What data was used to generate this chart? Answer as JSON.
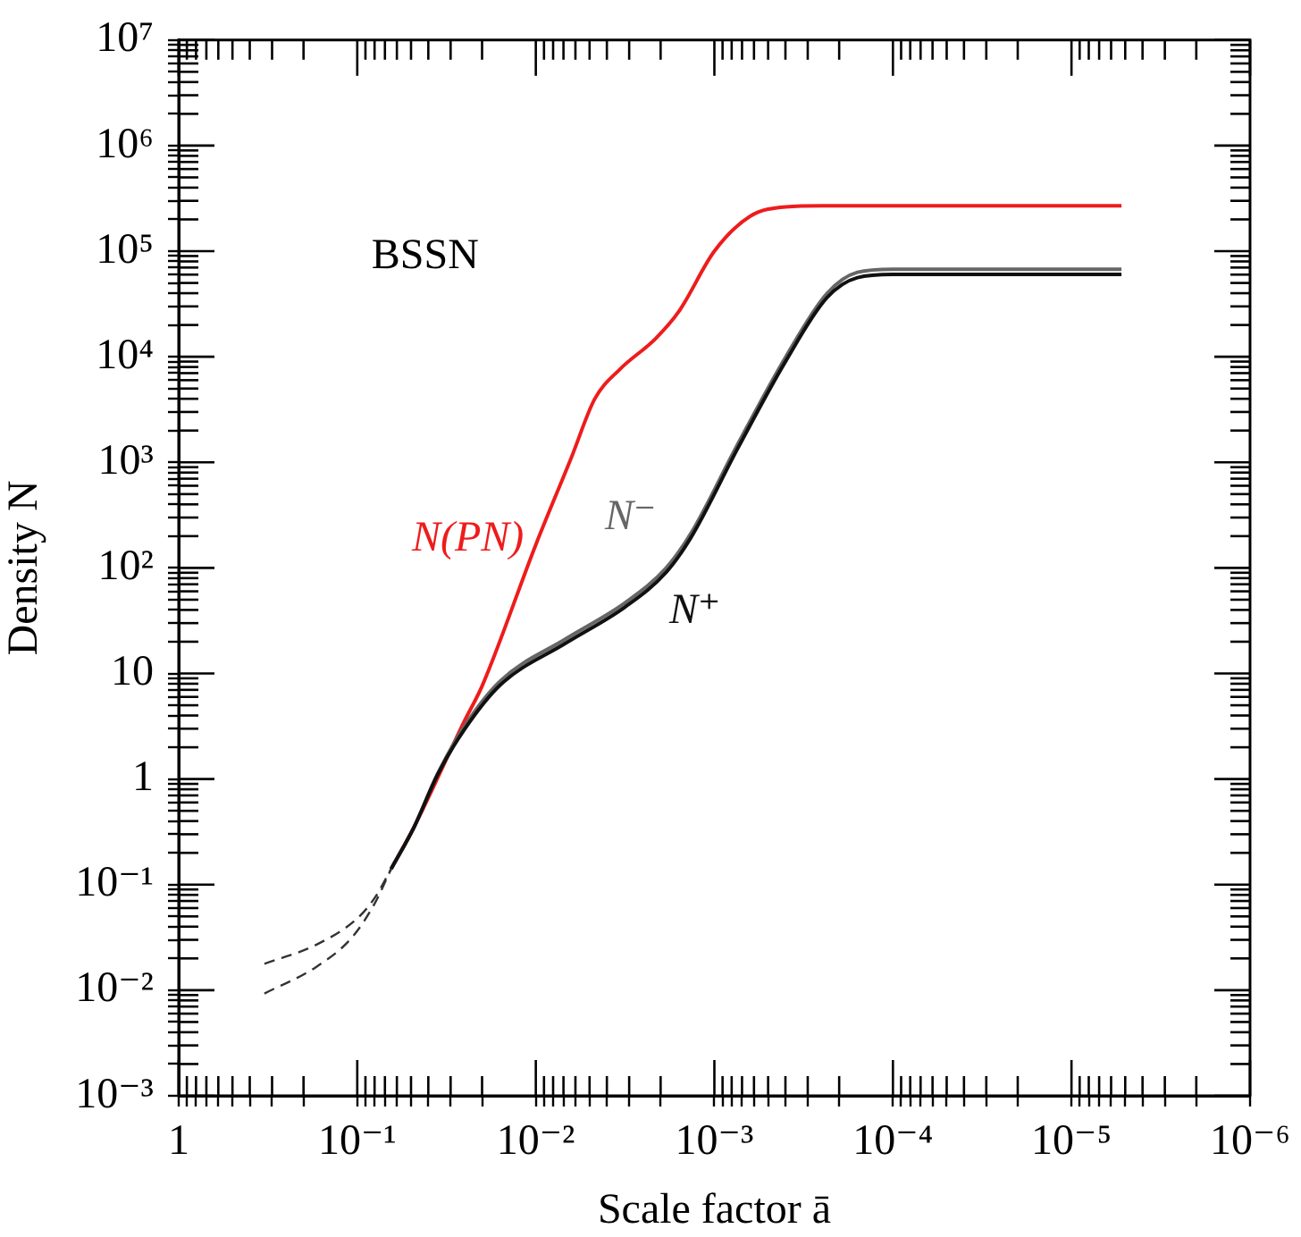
{
  "chart_data": {
    "type": "line",
    "xlabel": "Scale factor ā",
    "ylabel": "Density N",
    "annotations": [
      "BSSN"
    ],
    "log": "xy",
    "grid": false,
    "legend": false,
    "marker": "none",
    "xlim": [
      1,
      1e-06
    ],
    "ylim": [
      0.001,
      10000000.0
    ],
    "xticks": [
      {
        "value": 1,
        "label": "1"
      },
      {
        "value": 0.9,
        "label": null
      },
      {
        "value": 0.8,
        "label": null
      },
      {
        "value": 0.7,
        "label": null
      },
      {
        "value": 0.6,
        "label": null
      },
      {
        "value": 0.5,
        "label": null
      },
      {
        "value": 0.4,
        "label": null
      },
      {
        "value": 0.3,
        "label": null
      },
      {
        "value": 0.2,
        "label": null
      },
      {
        "value": 0.1,
        "label": "10⁻¹"
      },
      {
        "value": 0.09,
        "label": null
      },
      {
        "value": 0.08,
        "label": null
      },
      {
        "value": 0.07,
        "label": null
      },
      {
        "value": 0.06,
        "label": null
      },
      {
        "value": 0.05,
        "label": null
      },
      {
        "value": 0.04,
        "label": null
      },
      {
        "value": 0.03,
        "label": null
      },
      {
        "value": 0.02,
        "label": null
      },
      {
        "value": 0.01,
        "label": "10⁻²"
      },
      {
        "value": 0.009,
        "label": null
      },
      {
        "value": 0.008,
        "label": null
      },
      {
        "value": 0.007,
        "label": null
      },
      {
        "value": 0.006,
        "label": null
      },
      {
        "value": 0.005,
        "label": null
      },
      {
        "value": 0.004,
        "label": null
      },
      {
        "value": 0.003,
        "label": null
      },
      {
        "value": 0.002,
        "label": null
      },
      {
        "value": 0.001,
        "label": "10⁻³"
      },
      {
        "value": 0.0009,
        "label": null
      },
      {
        "value": 0.0008,
        "label": null
      },
      {
        "value": 0.0007,
        "label": null
      },
      {
        "value": 0.0006,
        "label": null
      },
      {
        "value": 0.0005,
        "label": null
      },
      {
        "value": 0.0004,
        "label": null
      },
      {
        "value": 0.0003,
        "label": null
      },
      {
        "value": 0.0002,
        "label": null
      },
      {
        "value": 0.0001,
        "label": "10⁻⁴"
      },
      {
        "value": 9e-05,
        "label": null
      },
      {
        "value": 8e-05,
        "label": null
      },
      {
        "value": 7e-05,
        "label": null
      },
      {
        "value": 6e-05,
        "label": null
      },
      {
        "value": 5e-05,
        "label": null
      },
      {
        "value": 4e-05,
        "label": null
      },
      {
        "value": 3e-05,
        "label": null
      },
      {
        "value": 2e-05,
        "label": null
      },
      {
        "value": 1e-05,
        "label": "10⁻⁵"
      },
      {
        "value": 9e-06,
        "label": null
      },
      {
        "value": 8e-06,
        "label": null
      },
      {
        "value": 7e-06,
        "label": null
      },
      {
        "value": 6e-06,
        "label": null
      },
      {
        "value": 5e-06,
        "label": null
      },
      {
        "value": 4e-06,
        "label": null
      },
      {
        "value": 3e-06,
        "label": null
      },
      {
        "value": 2e-06,
        "label": null
      },
      {
        "value": 1e-06,
        "label": "10⁻⁶"
      }
    ],
    "yticks": [
      {
        "value": 0.001,
        "label": "10⁻³"
      },
      {
        "value": 0.002,
        "label": null
      },
      {
        "value": 0.003,
        "label": null
      },
      {
        "value": 0.004,
        "label": null
      },
      {
        "value": 0.005,
        "label": null
      },
      {
        "value": 0.006,
        "label": null
      },
      {
        "value": 0.007,
        "label": null
      },
      {
        "value": 0.008,
        "label": null
      },
      {
        "value": 0.009,
        "label": null
      },
      {
        "value": 0.01,
        "label": "10⁻²"
      },
      {
        "value": 0.02,
        "label": null
      },
      {
        "value": 0.03,
        "label": null
      },
      {
        "value": 0.04,
        "label": null
      },
      {
        "value": 0.05,
        "label": null
      },
      {
        "value": 0.06,
        "label": null
      },
      {
        "value": 0.07,
        "label": null
      },
      {
        "value": 0.08,
        "label": null
      },
      {
        "value": 0.09,
        "label": null
      },
      {
        "value": 0.1,
        "label": "10⁻¹"
      },
      {
        "value": 0.2,
        "label": null
      },
      {
        "value": 0.3,
        "label": null
      },
      {
        "value": 0.4,
        "label": null
      },
      {
        "value": 0.5,
        "label": null
      },
      {
        "value": 0.6,
        "label": null
      },
      {
        "value": 0.7,
        "label": null
      },
      {
        "value": 0.8,
        "label": null
      },
      {
        "value": 0.9,
        "label": null
      },
      {
        "value": 1,
        "label": "1"
      },
      {
        "value": 2,
        "label": null
      },
      {
        "value": 3,
        "label": null
      },
      {
        "value": 4,
        "label": null
      },
      {
        "value": 5,
        "label": null
      },
      {
        "value": 6,
        "label": null
      },
      {
        "value": 7,
        "label": null
      },
      {
        "value": 8,
        "label": null
      },
      {
        "value": 9,
        "label": null
      },
      {
        "value": 10,
        "label": "10"
      },
      {
        "value": 20,
        "label": null
      },
      {
        "value": 30,
        "label": null
      },
      {
        "value": 40,
        "label": null
      },
      {
        "value": 50,
        "label": null
      },
      {
        "value": 60,
        "label": null
      },
      {
        "value": 70,
        "label": null
      },
      {
        "value": 80,
        "label": null
      },
      {
        "value": 90,
        "label": null
      },
      {
        "value": 100,
        "label": "10²"
      },
      {
        "value": 200,
        "label": null
      },
      {
        "value": 300,
        "label": null
      },
      {
        "value": 400,
        "label": null
      },
      {
        "value": 500,
        "label": null
      },
      {
        "value": 600,
        "label": null
      },
      {
        "value": 700,
        "label": null
      },
      {
        "value": 800,
        "label": null
      },
      {
        "value": 900,
        "label": null
      },
      {
        "value": 1000,
        "label": "10³"
      },
      {
        "value": 2000,
        "label": null
      },
      {
        "value": 3000,
        "label": null
      },
      {
        "value": 4000,
        "label": null
      },
      {
        "value": 5000,
        "label": null
      },
      {
        "value": 6000,
        "label": null
      },
      {
        "value": 7000,
        "label": null
      },
      {
        "value": 8000,
        "label": null
      },
      {
        "value": 9000,
        "label": null
      },
      {
        "value": 10000,
        "label": "10⁴"
      },
      {
        "value": 20000,
        "label": null
      },
      {
        "value": 30000,
        "label": null
      },
      {
        "value": 40000,
        "label": null
      },
      {
        "value": 50000,
        "label": null
      },
      {
        "value": 60000,
        "label": null
      },
      {
        "value": 70000,
        "label": null
      },
      {
        "value": 80000,
        "label": null
      },
      {
        "value": 90000,
        "label": null
      },
      {
        "value": 100000,
        "label": "10⁵"
      },
      {
        "value": 200000,
        "label": null
      },
      {
        "value": 300000,
        "label": null
      },
      {
        "value": 400000,
        "label": null
      },
      {
        "value": 500000,
        "label": null
      },
      {
        "value": 600000,
        "label": null
      },
      {
        "value": 700000,
        "label": null
      },
      {
        "value": 800000,
        "label": null
      },
      {
        "value": 900000,
        "label": null
      },
      {
        "value": 1000000,
        "label": "10⁶"
      },
      {
        "value": 2000000,
        "label": null
      },
      {
        "value": 3000000,
        "label": null
      },
      {
        "value": 4000000,
        "label": null
      },
      {
        "value": 5000000,
        "label": null
      },
      {
        "value": 6000000,
        "label": null
      },
      {
        "value": 7000000,
        "label": null
      },
      {
        "value": 8000000,
        "label": null
      },
      {
        "value": 9000000,
        "label": null
      },
      {
        "value": 10000000,
        "label": "10⁷"
      }
    ],
    "series": [
      {
        "name": "N(PN)",
        "color": "#ee1c1c",
        "x": [
          0.0646,
          0.0479,
          0.0251,
          0.02,
          0.01,
          0.00631,
          0.00468,
          0.00339,
          0.00214,
          0.00158,
          0.001,
          0.000631,
          0.000398,
          0.000251,
          5.25e-06
        ],
        "values": [
          0.141,
          0.355,
          3.55,
          7.6,
          166,
          1120,
          3980,
          7590,
          14800,
          26900,
          100000,
          214000,
          263000,
          269000,
          269000
        ]
      },
      {
        "name": "N⁻",
        "color": "#666666",
        "x": [
          0.0646,
          0.0479,
          0.0355,
          0.0251,
          0.0158,
          0.00676,
          0.00316,
          0.00186,
          0.00135,
          0.000741,
          0.000398,
          0.000234,
          0.000158,
          0.0001,
          5.25e-06
        ],
        "values": [
          0.141,
          0.355,
          1.12,
          3.16,
          8.5,
          21.4,
          46.8,
          100,
          214,
          1480,
          10000,
          39800,
          63100,
          67600,
          67600
        ]
      },
      {
        "name": "N⁺",
        "color": "#111111",
        "x": [
          0.0646,
          0.0479,
          0.0355,
          0.0251,
          0.0158,
          0.00676,
          0.00316,
          0.00186,
          0.00135,
          0.000741,
          0.000398,
          0.000234,
          0.000158,
          0.0001,
          5.25e-06
        ],
        "values": [
          0.141,
          0.355,
          1.1,
          2.95,
          7.8,
          19.5,
          42.7,
          91,
          195,
          1350,
          9120,
          36300,
          56200,
          60300,
          60300
        ]
      },
      {
        "color": "#333333",
        "line_style": "dashed",
        "x": [
          0.331,
          0.17,
          0.1,
          0.0794,
          0.0646
        ],
        "values": [
          0.0178,
          0.0269,
          0.0479,
          0.0759,
          0.141
        ]
      },
      {
        "color": "#333333",
        "line_style": "dashed",
        "x": [
          0.331,
          0.17,
          0.107,
          0.0794,
          0.0646
        ],
        "values": [
          0.0093,
          0.0166,
          0.0316,
          0.0676,
          0.141
        ]
      }
    ]
  }
}
